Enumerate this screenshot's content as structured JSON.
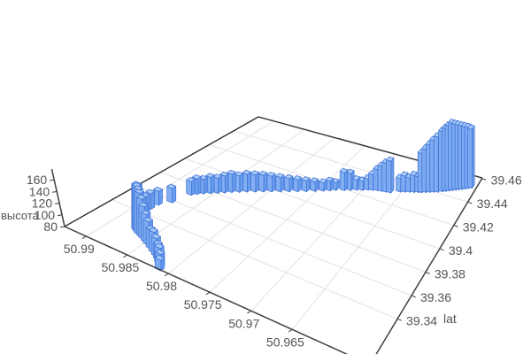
{
  "chart_data": {
    "type": "bar",
    "subtype": "3d-bar-elevation-track",
    "title": "",
    "zlabel": "высота",
    "ylabel": "lat",
    "xlabel": "",
    "z_ticks": [
      "80",
      "100",
      "120",
      "140",
      "160"
    ],
    "lon_ticks": [
      "50.99",
      "50.985",
      "50.98",
      "50.975",
      "50.97",
      "50.965"
    ],
    "lat_ticks": [
      "39.34",
      "39.36",
      "39.38",
      "39.4",
      "39.42",
      "39.44",
      "39.46"
    ],
    "z_range": [
      80,
      182
    ],
    "lon_range": [
      50.9556,
      50.9926
    ],
    "lat_range": [
      39.301,
      39.4605
    ],
    "grid": true,
    "legend": false,
    "bar_fill_front": "#7DACF2",
    "bar_fill_side": "#639AEC",
    "bar_fill_top": "#A8CAF8",
    "bar_stroke": "#3F72D8",
    "grid_color": "#E2E2E2",
    "axis_line_color": "#3F3F3F",
    "tick_color": "#545454",
    "bars": [
      [
        50.9812,
        39.302,
        96
      ],
      [
        50.9815,
        39.3045,
        100
      ],
      [
        50.9819,
        39.307,
        104
      ],
      [
        50.9824,
        39.3095,
        103
      ],
      [
        50.9829,
        39.3115,
        108
      ],
      [
        50.9835,
        39.3135,
        112
      ],
      [
        50.9841,
        39.3155,
        110
      ],
      [
        50.9847,
        39.3175,
        117
      ],
      [
        50.9852,
        39.319,
        124
      ],
      [
        50.9857,
        39.3205,
        132
      ],
      [
        50.9861,
        39.3215,
        141
      ],
      [
        50.9865,
        39.3225,
        147
      ],
      [
        50.9868,
        39.3235,
        150
      ],
      [
        50.9871,
        39.3245,
        152
      ],
      [
        50.9873,
        39.3255,
        152
      ],
      [
        50.9874,
        39.327,
        149
      ],
      [
        50.9879,
        39.334,
        113
      ],
      [
        50.9884,
        39.3405,
        110
      ],
      [
        50.9887,
        39.347,
        106
      ],
      [
        50.9886,
        39.353,
        103
      ],
      [
        50.9878,
        39.3595,
        104
      ],
      [
        50.9871,
        39.372,
        103
      ],
      [
        50.9867,
        39.3745,
        106
      ],
      [
        50.9862,
        39.377,
        104
      ],
      [
        50.9856,
        39.3795,
        107
      ],
      [
        50.985,
        39.382,
        105
      ],
      [
        50.9844,
        39.3845,
        108
      ],
      [
        50.9838,
        39.387,
        110
      ],
      [
        50.9831,
        39.3895,
        107
      ],
      [
        50.9824,
        39.392,
        109
      ],
      [
        50.9816,
        39.3945,
        108
      ],
      [
        50.9808,
        39.397,
        107
      ],
      [
        50.98,
        39.3995,
        105
      ],
      [
        50.9791,
        39.402,
        103
      ],
      [
        50.9782,
        39.4045,
        101
      ],
      [
        50.9773,
        39.407,
        99
      ],
      [
        50.9764,
        39.4095,
        97
      ],
      [
        50.9755,
        39.412,
        95
      ],
      [
        50.9746,
        39.4145,
        93
      ],
      [
        50.9739,
        39.4165,
        95
      ],
      [
        50.9733,
        39.4185,
        92
      ],
      [
        50.9723,
        39.4205,
        108
      ],
      [
        50.9716,
        39.4225,
        106
      ],
      [
        50.9709,
        39.424,
        96
      ],
      [
        50.9702,
        39.4255,
        94
      ],
      [
        50.9696,
        39.427,
        97
      ],
      [
        50.969,
        39.428,
        104
      ],
      [
        50.9684,
        39.429,
        112
      ],
      [
        50.9678,
        39.4295,
        118
      ],
      [
        50.9672,
        39.43,
        124
      ],
      [
        50.9666,
        39.4305,
        128
      ],
      [
        50.9655,
        39.4335,
        100
      ],
      [
        50.9649,
        39.4345,
        104
      ],
      [
        50.9643,
        39.4355,
        101
      ],
      [
        50.9637,
        39.4365,
        105
      ],
      [
        50.9631,
        39.4375,
        103
      ],
      [
        50.9627,
        39.4382,
        138
      ],
      [
        50.9622,
        39.4392,
        144
      ],
      [
        50.9617,
        39.4402,
        150
      ],
      [
        50.9612,
        39.4412,
        156
      ],
      [
        50.9607,
        39.4422,
        161
      ],
      [
        50.9601,
        39.4435,
        168
      ],
      [
        50.9597,
        39.4445,
        172
      ],
      [
        50.9593,
        39.4455,
        175
      ],
      [
        50.9589,
        39.4465,
        178
      ],
      [
        50.9585,
        39.4475,
        176
      ],
      [
        50.9581,
        39.4485,
        174
      ],
      [
        50.9577,
        39.4495,
        172
      ],
      [
        50.9573,
        39.4505,
        170
      ],
      [
        50.9569,
        39.4515,
        168
      ],
      [
        50.9565,
        39.4525,
        165
      ]
    ]
  }
}
